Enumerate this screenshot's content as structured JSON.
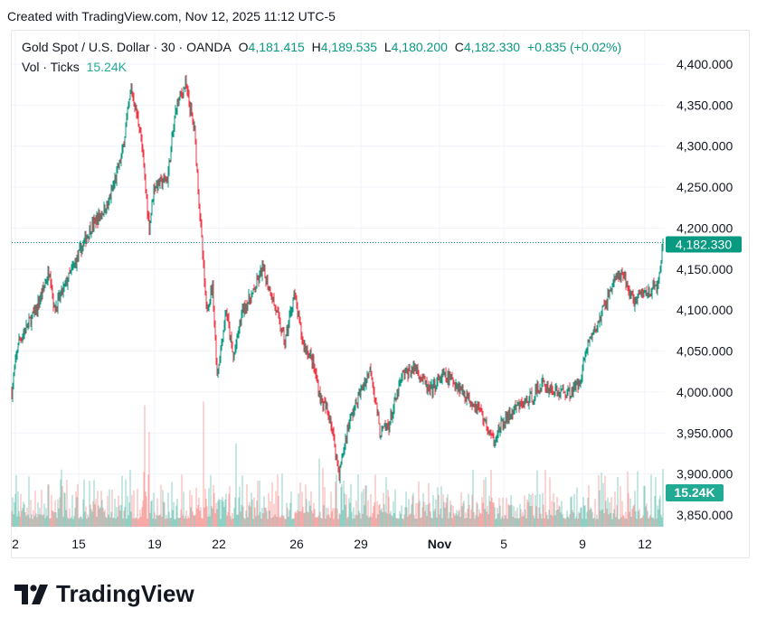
{
  "header": {
    "created": "Created with TradingView.com, Nov 12, 2025 11:12 UTC-5"
  },
  "legend": {
    "symbol": "Gold Spot / U.S. Dollar · 30 · OANDA",
    "o_label": "O",
    "open": "4,181.415",
    "h_label": "H",
    "high": "4,189.535",
    "l_label": "L",
    "low": "4,180.200",
    "c_label": "C",
    "close": "4,182.330",
    "change": "+0.835 (+0.02%)",
    "vol_label": "Vol · Ticks",
    "vol_value": "15.24K"
  },
  "brand": {
    "name": "TradingView"
  },
  "colors": {
    "up": "#089981",
    "down": "#f23645",
    "up_vol": "#8fd0c4",
    "down_vol": "#f7a9a7",
    "badge": "#089981",
    "vol_badge": "#22ab94"
  },
  "chart_data": {
    "type": "candlestick",
    "title": "Gold Spot / U.S. Dollar · 30 · OANDA",
    "ylim": [
      3835,
      4415
    ],
    "y_ticks": [
      {
        "value": 4400,
        "label": "4,400.000"
      },
      {
        "value": 4350,
        "label": "4,350.000"
      },
      {
        "value": 4300,
        "label": "4,300.000"
      },
      {
        "value": 4250,
        "label": "4,250.000"
      },
      {
        "value": 4200,
        "label": "4,200.000"
      },
      {
        "value": 4150,
        "label": "4,150.000"
      },
      {
        "value": 4100,
        "label": "4,100.000"
      },
      {
        "value": 4050,
        "label": "4,050.000"
      },
      {
        "value": 4000,
        "label": "4,000.000"
      },
      {
        "value": 3950,
        "label": "3,950.000"
      },
      {
        "value": 3900,
        "label": "3,900.000"
      },
      {
        "value": 3850,
        "label": "3,850.000"
      }
    ],
    "x_domain": [
      0,
      720
    ],
    "x_ticks": [
      {
        "index": 4,
        "label": "2"
      },
      {
        "index": 74,
        "label": "15"
      },
      {
        "index": 158,
        "label": "19"
      },
      {
        "index": 229,
        "label": "22"
      },
      {
        "index": 315,
        "label": "26"
      },
      {
        "index": 386,
        "label": "29"
      },
      {
        "index": 473,
        "label": "Nov"
      },
      {
        "index": 544,
        "label": "5"
      },
      {
        "index": 631,
        "label": "9"
      },
      {
        "index": 700,
        "label": "12"
      }
    ],
    "price_path": [
      [
        0,
        4000
      ],
      [
        7,
        4060
      ],
      [
        27,
        4100
      ],
      [
        42,
        4150
      ],
      [
        47,
        4100
      ],
      [
        67,
        4150
      ],
      [
        87,
        4200
      ],
      [
        107,
        4230
      ],
      [
        122,
        4290
      ],
      [
        132,
        4370
      ],
      [
        142,
        4320
      ],
      [
        152,
        4200
      ],
      [
        157,
        4250
      ],
      [
        172,
        4260
      ],
      [
        182,
        4350
      ],
      [
        192,
        4375
      ],
      [
        202,
        4320
      ],
      [
        209,
        4200
      ],
      [
        215,
        4100
      ],
      [
        222,
        4130
      ],
      [
        227,
        4020
      ],
      [
        237,
        4100
      ],
      [
        245,
        4040
      ],
      [
        255,
        4100
      ],
      [
        267,
        4120
      ],
      [
        277,
        4150
      ],
      [
        287,
        4120
      ],
      [
        302,
        4060
      ],
      [
        312,
        4120
      ],
      [
        322,
        4060
      ],
      [
        332,
        4040
      ],
      [
        342,
        3990
      ],
      [
        352,
        3970
      ],
      [
        362,
        3900
      ],
      [
        372,
        3960
      ],
      [
        382,
        3990
      ],
      [
        397,
        4030
      ],
      [
        407,
        3950
      ],
      [
        417,
        3960
      ],
      [
        432,
        4020
      ],
      [
        447,
        4030
      ],
      [
        462,
        4000
      ],
      [
        477,
        4020
      ],
      [
        492,
        4010
      ],
      [
        507,
        3990
      ],
      [
        517,
        3980
      ],
      [
        532,
        3940
      ],
      [
        542,
        3960
      ],
      [
        557,
        3980
      ],
      [
        572,
        3990
      ],
      [
        587,
        4010
      ],
      [
        602,
        4000
      ],
      [
        617,
        4000
      ],
      [
        627,
        4010
      ],
      [
        637,
        4060
      ],
      [
        647,
        4080
      ],
      [
        657,
        4110
      ],
      [
        667,
        4140
      ],
      [
        677,
        4140
      ],
      [
        687,
        4110
      ],
      [
        697,
        4120
      ],
      [
        707,
        4125
      ],
      [
        715,
        4130
      ],
      [
        720,
        4182.33
      ]
    ],
    "last_price": {
      "value": 4182.33,
      "label": "4,182.330"
    },
    "volume": {
      "unit": "K ticks",
      "last": 15.24,
      "last_label": "15.24K",
      "peaks": [
        [
          147,
          32
        ],
        [
          212,
          33
        ],
        [
          152,
          25
        ],
        [
          248,
          22
        ],
        [
          340,
          18
        ],
        [
          590,
          15
        ],
        [
          720,
          16
        ]
      ]
    }
  }
}
